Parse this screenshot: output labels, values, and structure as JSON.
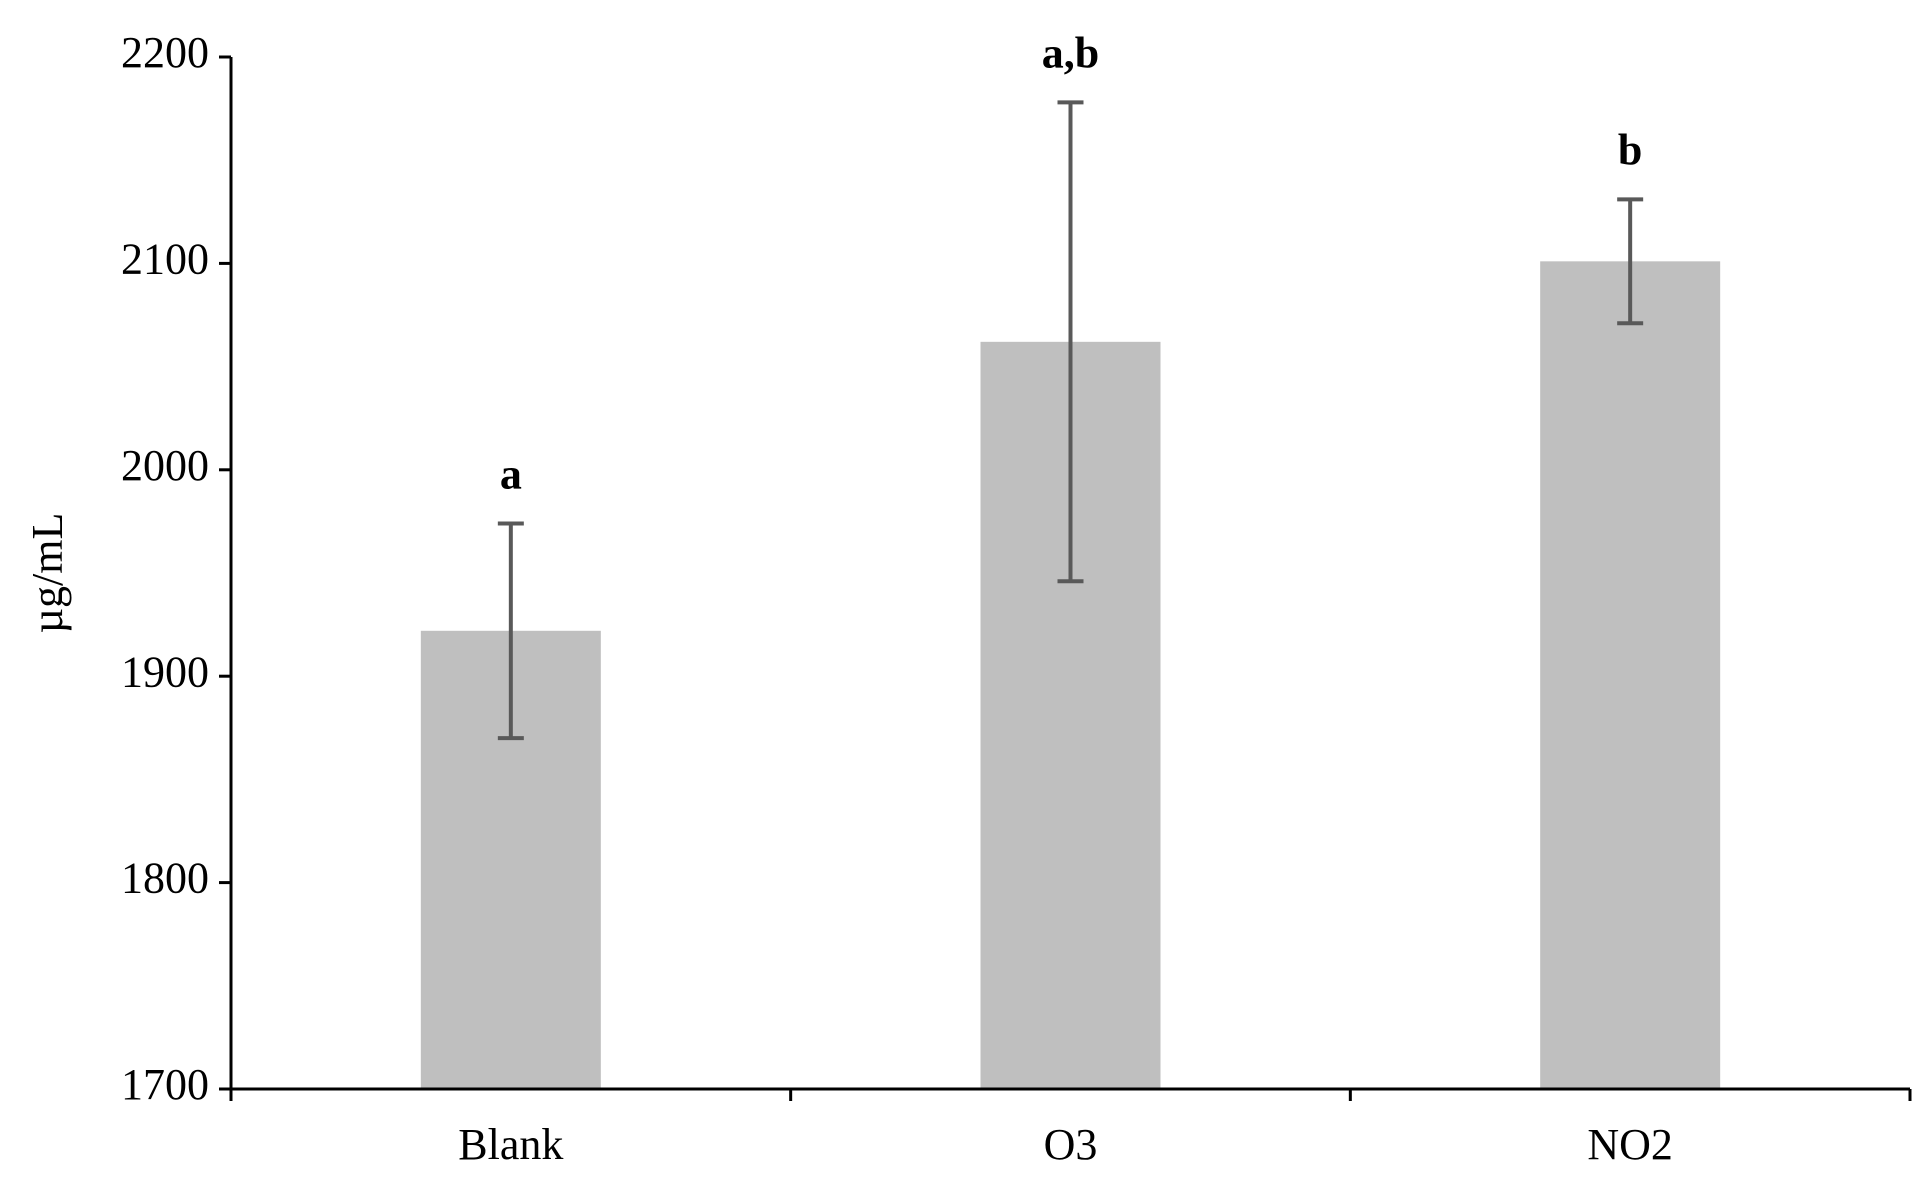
{
  "chart_data": {
    "type": "bar",
    "y_label": "µg/mL",
    "categories": [
      "Blank",
      "O3",
      "NO2"
    ],
    "values": [
      1922,
      2062,
      2101
    ],
    "errors": [
      52,
      116,
      30
    ],
    "annotations": [
      "a",
      "a,b",
      "b"
    ],
    "color": "#bfbfbf",
    "error_color": "#595959",
    "ylim": [
      1700,
      2200
    ],
    "yticks": [
      1700,
      1800,
      1900,
      2000,
      2100,
      2200
    ],
    "grid": false
  }
}
